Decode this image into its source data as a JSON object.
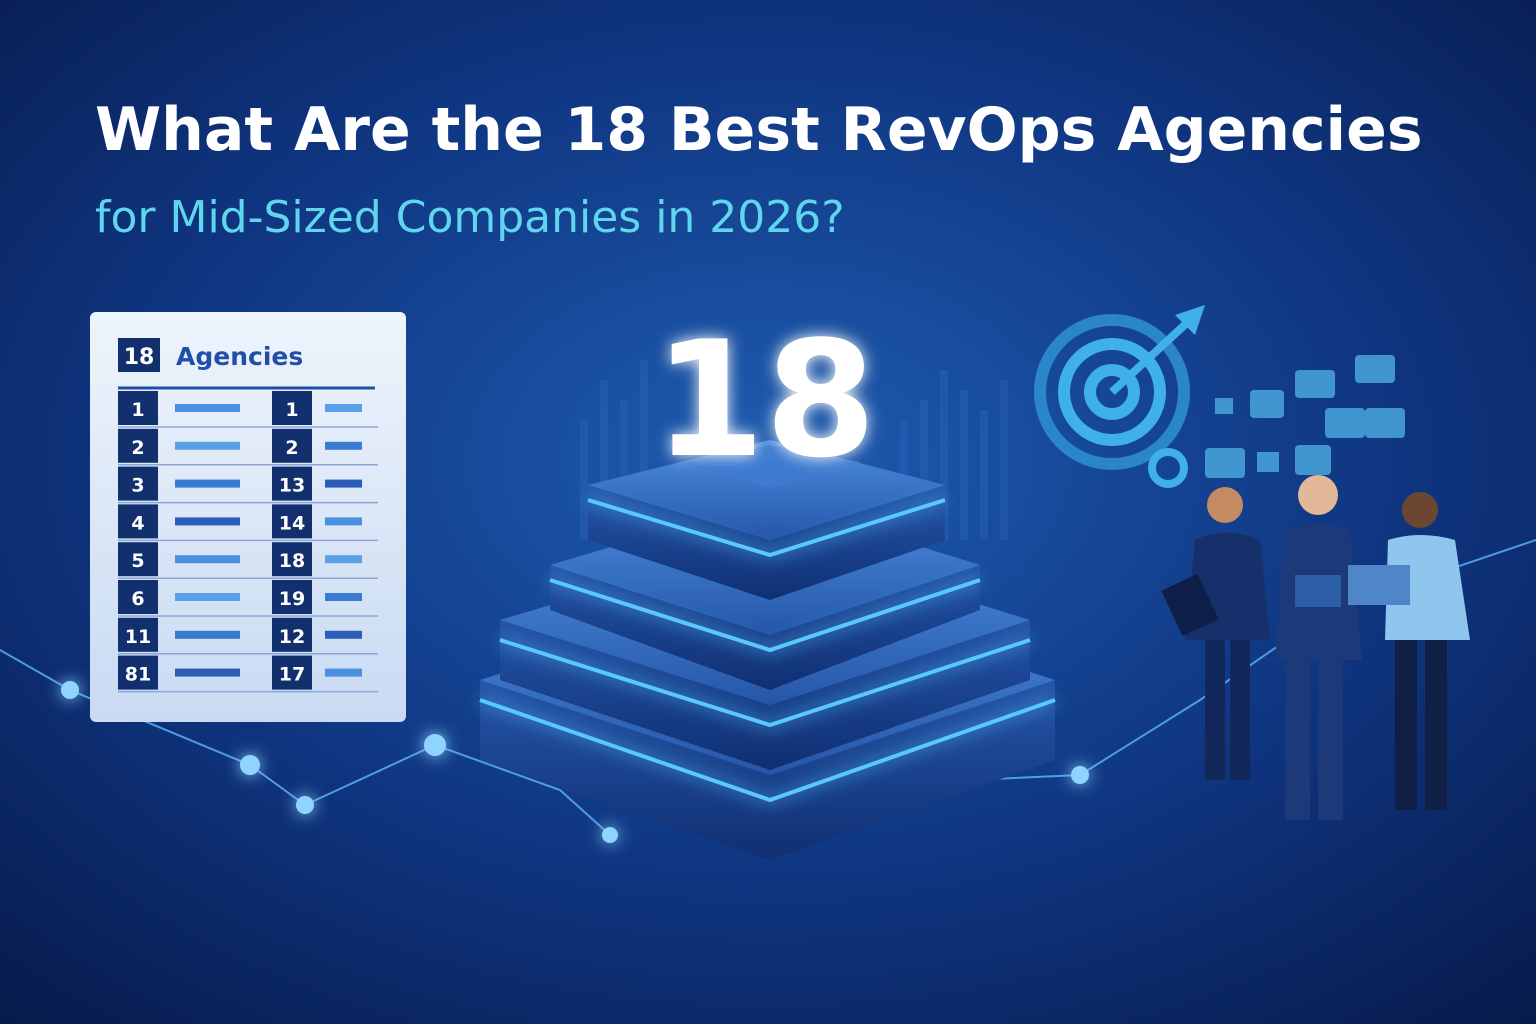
{
  "header": {
    "title": "What Are the 18 Best RevOps Agencies",
    "subtitle": "for Mid-Sized Companies in 2026?"
  },
  "card": {
    "badge": "18",
    "label": "Agencies",
    "rows": [
      [
        "1",
        "1"
      ],
      [
        "2",
        "2"
      ],
      [
        "3",
        "13"
      ],
      [
        "4",
        "14"
      ],
      [
        "5",
        "18"
      ],
      [
        "6",
        "19"
      ],
      [
        "11",
        "12"
      ],
      [
        "81",
        "17"
      ]
    ]
  },
  "podium": {
    "number": "18"
  }
}
